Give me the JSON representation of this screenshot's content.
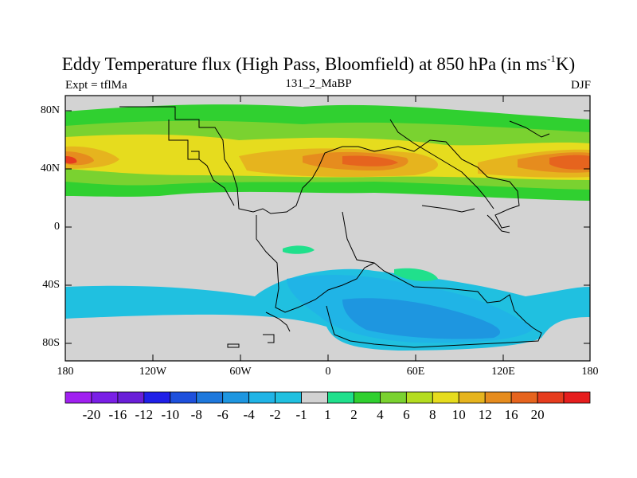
{
  "title": {
    "main": "Eddy Temperature flux (High Pass, Bloomfield) at 850 hPa (in ms",
    "sup": "-1",
    "tail": "K)"
  },
  "subtitle": {
    "left": "Expt = tflMa",
    "center": "131_2_MaBP",
    "right": "DJF"
  },
  "axes": {
    "lat_ticks": [
      "80N",
      "40N",
      "0",
      "40S",
      "80S"
    ],
    "lon_ticks": [
      "180",
      "120W",
      "60W",
      "0",
      "60E",
      "120E",
      "180"
    ]
  },
  "legend": {
    "labels": [
      "-20",
      "-16",
      "-12",
      "-10",
      "-8",
      "-6",
      "-4",
      "-2",
      "-1",
      "1",
      "2",
      "4",
      "6",
      "8",
      "10",
      "12",
      "16",
      "20"
    ],
    "colors": [
      "#a020f0",
      "#7a1fe6",
      "#6a1fd8",
      "#2020e8",
      "#1e50dc",
      "#1e78dc",
      "#1e96e0",
      "#20b4e6",
      "#20c0e0",
      "#d2d2d2",
      "#20e08c",
      "#30d030",
      "#7ad230",
      "#b4dc20",
      "#e6dc1e",
      "#e6b41e",
      "#e68c1e",
      "#e6641e",
      "#e63c1e",
      "#e61e1e"
    ]
  },
  "map_colors": {
    "land_background": "#d3d3d3",
    "coast": "#000000"
  }
}
